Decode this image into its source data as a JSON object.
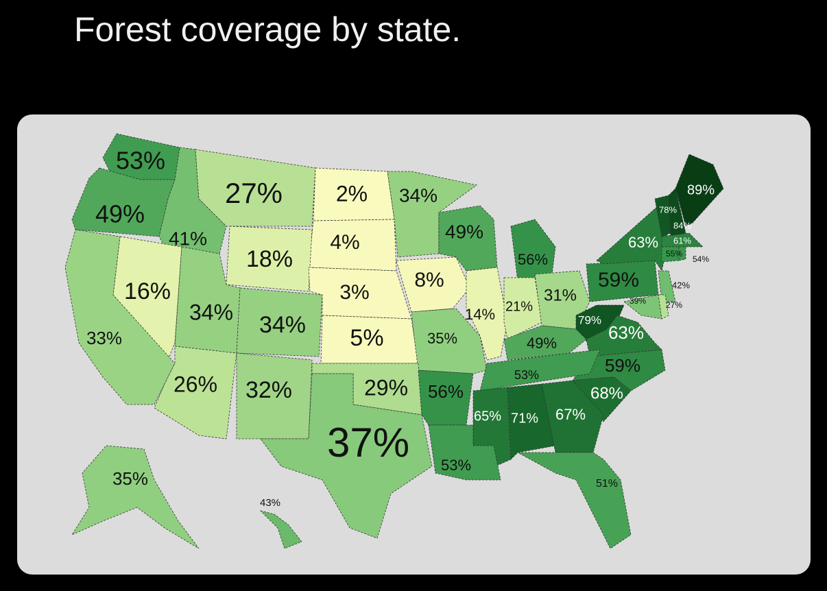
{
  "title": "Forest coverage by state.",
  "map": {
    "labels": [
      "53%",
      "49%",
      "41%",
      "27%",
      "2%",
      "34%",
      "4%",
      "18%",
      "49%",
      "56%",
      "16%",
      "34%",
      "34%",
      "3%",
      "8%",
      "14%",
      "21%",
      "31%",
      "59%",
      "63%",
      "89%",
      "78%",
      "84%",
      "61%",
      "55%",
      "54%",
      "42%",
      "27%",
      "39%",
      "79%",
      "63%",
      "49%",
      "33%",
      "5%",
      "35%",
      "59%",
      "53%",
      "26%",
      "32%",
      "29%",
      "56%",
      "68%",
      "65%",
      "71%",
      "67%",
      "37%",
      "53%",
      "51%",
      "35%",
      "43%"
    ]
  }
}
